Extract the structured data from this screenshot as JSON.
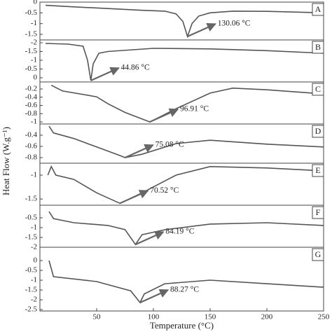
{
  "chart_data": [
    {
      "type": "line",
      "label": "A",
      "annotation": "130.06 °C",
      "color": "#555",
      "xlim": [
        0,
        250
      ],
      "ylim": [
        -1.76,
        0
      ],
      "yticks": [
        0.0,
        -0.5,
        -1.0,
        -1.5
      ],
      "x": [
        5,
        30,
        60,
        90,
        110,
        120,
        126,
        130.06,
        134,
        140,
        150,
        170,
        200,
        230,
        250
      ],
      "values": [
        -0.15,
        -0.22,
        -0.3,
        -0.38,
        -0.42,
        -0.55,
        -0.9,
        -1.6,
        -1.0,
        -0.65,
        -0.5,
        -0.42,
        -0.43,
        -0.47,
        -0.5
      ]
    },
    {
      "type": "line",
      "label": "B",
      "annotation": "44.86 °C",
      "color": "#555",
      "xlim": [
        0,
        250
      ],
      "ylim": [
        -2.16,
        0.24
      ],
      "y_inverted": true,
      "yticks": [
        -2.0,
        -1.5,
        -1.0,
        -0.5,
        0.0
      ],
      "x": [
        5,
        25,
        38,
        42,
        44.86,
        47,
        52,
        60,
        100,
        150,
        200,
        250
      ],
      "values": [
        -1.96,
        -1.92,
        -1.8,
        -1.0,
        0.16,
        -0.8,
        -1.4,
        -1.5,
        -1.68,
        -1.65,
        -1.55,
        -1.4
      ]
    },
    {
      "type": "line",
      "label": "C",
      "annotation": "96.91 °C",
      "color": "#555",
      "xlim": [
        0,
        250
      ],
      "ylim": [
        -1.05,
        -0.03
      ],
      "yticks": [
        -0.2,
        -0.4,
        -0.6,
        -0.8,
        -1.0
      ],
      "x": [
        10,
        20,
        50,
        60,
        75,
        96.91,
        120,
        150,
        170,
        200,
        250
      ],
      "values": [
        -0.11,
        -0.25,
        -0.39,
        -0.56,
        -0.77,
        -1.0,
        -0.68,
        -0.3,
        -0.18,
        -0.22,
        -0.32
      ]
    },
    {
      "type": "line",
      "label": "D",
      "annotation": "75.08 °C",
      "color": "#555",
      "xlim": [
        0,
        250
      ],
      "ylim": [
        -0.9,
        -0.2
      ],
      "yticks": [
        -0.4,
        -0.6,
        -0.8
      ],
      "ylabel": "Heat Flow (W.g⁻¹)",
      "x": [
        8,
        12,
        30,
        50,
        70,
        75.08,
        90,
        120,
        150,
        200,
        250
      ],
      "values": [
        -0.24,
        -0.36,
        -0.46,
        -0.61,
        -0.76,
        -0.8,
        -0.74,
        -0.55,
        -0.49,
        -0.56,
        -0.61
      ]
    },
    {
      "type": "line",
      "label": "E",
      "annotation": "70.52 °C",
      "color": "#555",
      "xlim": [
        0,
        250
      ],
      "ylim": [
        -1.63,
        -0.75
      ],
      "yticks": [
        -1.0,
        -1.5
      ],
      "x": [
        7,
        10,
        14,
        30,
        50,
        70.52,
        90,
        120,
        150,
        200,
        250
      ],
      "values": [
        -1.0,
        -0.82,
        -1.0,
        -1.09,
        -1.37,
        -1.59,
        -1.37,
        -1.0,
        -0.82,
        -0.85,
        -0.91
      ]
    },
    {
      "type": "line",
      "label": "F",
      "annotation": "84.19 °C",
      "color": "#555",
      "xlim": [
        0,
        250
      ],
      "ylim": [
        -2.0,
        0.14
      ],
      "yticks": [
        -0.5,
        -1.0,
        -1.5,
        -2.0
      ],
      "x": [
        8,
        12,
        30,
        60,
        75,
        84.19,
        90,
        110,
        150,
        200,
        250
      ],
      "values": [
        -0.18,
        -0.54,
        -0.75,
        -0.89,
        -1.1,
        -1.86,
        -1.36,
        -1.11,
        -0.82,
        -0.75,
        -0.89
      ]
    },
    {
      "type": "line",
      "label": "G",
      "annotation": "88.27 °C",
      "color": "#555",
      "xlim": [
        0,
        250
      ],
      "ylim": [
        -2.57,
        0.68
      ],
      "yticks": [
        0.0,
        -0.5,
        -1.0,
        -1.5,
        -2.0,
        -2.5
      ],
      "xticks": [
        50,
        100,
        150,
        200,
        250
      ],
      "xlabel": "Temperature (°C)",
      "x": [
        8,
        12,
        50,
        80,
        88.27,
        92,
        110,
        150,
        200,
        250
      ],
      "values": [
        0.0,
        -0.82,
        -1.07,
        -1.54,
        -2.14,
        -1.7,
        -1.18,
        -1.0,
        -1.18,
        -1.36
      ]
    }
  ]
}
